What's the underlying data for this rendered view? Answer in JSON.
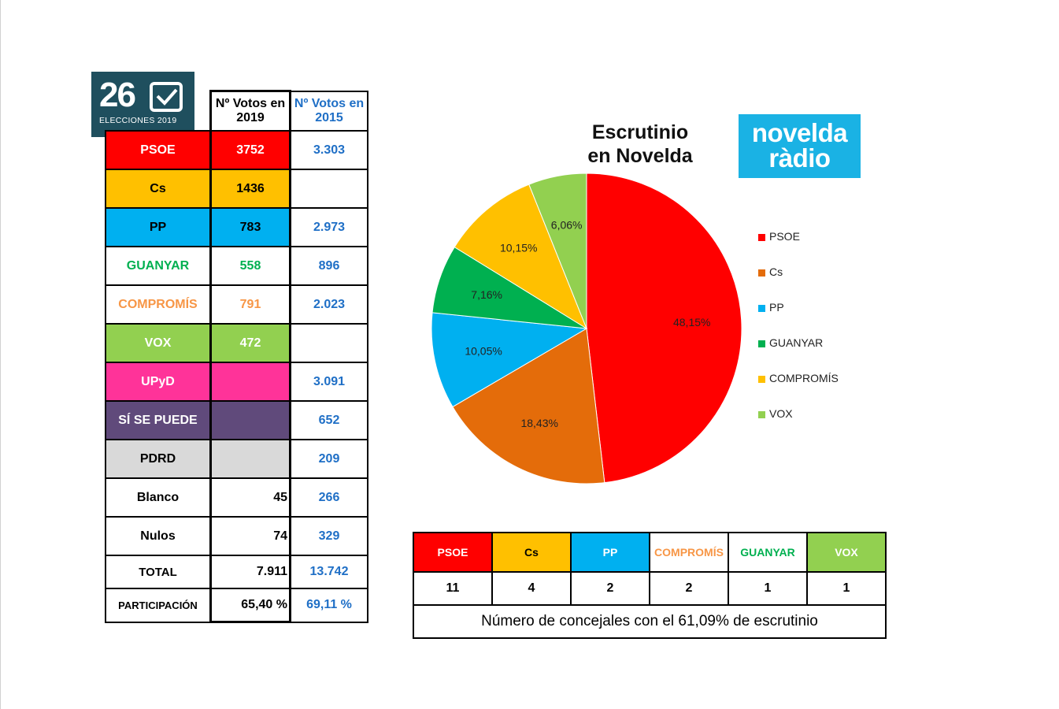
{
  "logo": {
    "number": "26",
    "subtitle": "ELECCIONES 2019"
  },
  "table": {
    "header": {
      "col_2019": "Nº Votos en 2019",
      "col_2015": "Nº Votos en 2015"
    },
    "rows": [
      {
        "party": "PSOE",
        "v2019": "3752",
        "v2015": "3.303",
        "bg": "#ff0000",
        "fg": "#ffffff",
        "bg2019": "#ff0000",
        "fg2019": "#ffffff"
      },
      {
        "party": "Cs",
        "v2019": "1436",
        "v2015": "",
        "bg": "#ffc000",
        "fg": "#000000",
        "bg2019": "#ffc000",
        "fg2019": "#000000"
      },
      {
        "party": "PP",
        "v2019": "783",
        "v2015": "2.973",
        "bg": "#00b0f0",
        "fg": "#000000",
        "bg2019": "#00b0f0",
        "fg2019": "#000000"
      },
      {
        "party": "GUANYAR",
        "v2019": "558",
        "v2015": "896",
        "bg": "#ffffff",
        "fg": "#00b050",
        "bg2019": "#ffffff",
        "fg2019": "#00b050"
      },
      {
        "party": "COMPROMÍS",
        "v2019": "791",
        "v2015": "2.023",
        "bg": "#ffffff",
        "fg": "#f79646",
        "bg2019": "#ffffff",
        "fg2019": "#f79646"
      },
      {
        "party": "VOX",
        "v2019": "472",
        "v2015": "",
        "bg": "#92d050",
        "fg": "#ffffff",
        "bg2019": "#92d050",
        "fg2019": "#ffffff"
      },
      {
        "party": "UPyD",
        "v2019": "",
        "v2015": "3.091",
        "bg": "#ff3399",
        "fg": "#ffffff",
        "bg2019": "#ff3399",
        "fg2019": "#ffffff"
      },
      {
        "party": "SÍ SE PUEDE",
        "v2019": "",
        "v2015": "652",
        "bg": "#604a7b",
        "fg": "#ffffff",
        "bg2019": "#604a7b",
        "fg2019": "#ffffff"
      },
      {
        "party": "PDRD",
        "v2019": "",
        "v2015": "209",
        "bg": "#d9d9d9",
        "fg": "#000000",
        "bg2019": "#d9d9d9",
        "fg2019": "#000000"
      },
      {
        "party": "Blanco",
        "v2019": "45",
        "v2015": "266",
        "bg": "#ffffff",
        "fg": "#000000",
        "bg2019": "#ffffff",
        "fg2019": "#000000"
      },
      {
        "party": "Nulos",
        "v2019": "74",
        "v2015": "329",
        "bg": "#ffffff",
        "fg": "#000000",
        "bg2019": "#ffffff",
        "fg2019": "#000000"
      }
    ],
    "total": {
      "label": "TOTAL",
      "v2019": "7.911",
      "v2015": "13.742"
    },
    "participation": {
      "label": "PARTICIPACIÓN",
      "v2019": "65,40 %",
      "v2015": "69,11 %"
    }
  },
  "chart_title_line1": "Escrutinio",
  "chart_title_line2": "en Novelda",
  "radio_logo": {
    "line1": "novelda",
    "line2": "ràdio"
  },
  "chart_data": {
    "type": "pie",
    "title": "Escrutinio en Novelda",
    "categories": [
      "PSOE",
      "Cs",
      "PP",
      "GUANYAR",
      "COMPROMÍS",
      "VOX"
    ],
    "values": [
      48.15,
      18.43,
      10.05,
      7.16,
      10.15,
      6.06
    ],
    "labels": [
      "48,15%",
      "18,43%",
      "10,05%",
      "7,16%",
      "10,15%",
      "6,06%"
    ],
    "colors": [
      "#ff0000",
      "#e46c0a",
      "#00b0f0",
      "#00b050",
      "#ffc000",
      "#92d050"
    ],
    "legend_position": "right"
  },
  "seats": {
    "parties": [
      {
        "name": "PSOE",
        "seats": "11",
        "bg": "#ff0000",
        "fg": "#ffffff"
      },
      {
        "name": "Cs",
        "seats": "4",
        "bg": "#ffc000",
        "fg": "#000000"
      },
      {
        "name": "PP",
        "seats": "2",
        "bg": "#00b0f0",
        "fg": "#ffffff"
      },
      {
        "name": "COMPROMÍS",
        "seats": "2",
        "bg": "#ffffff",
        "fg": "#f79646"
      },
      {
        "name": "GUANYAR",
        "seats": "1",
        "bg": "#ffffff",
        "fg": "#00b050"
      },
      {
        "name": "VOX",
        "seats": "1",
        "bg": "#92d050",
        "fg": "#ffffff"
      }
    ],
    "note": "Número de concejales con el 61,09% de escrutinio"
  }
}
